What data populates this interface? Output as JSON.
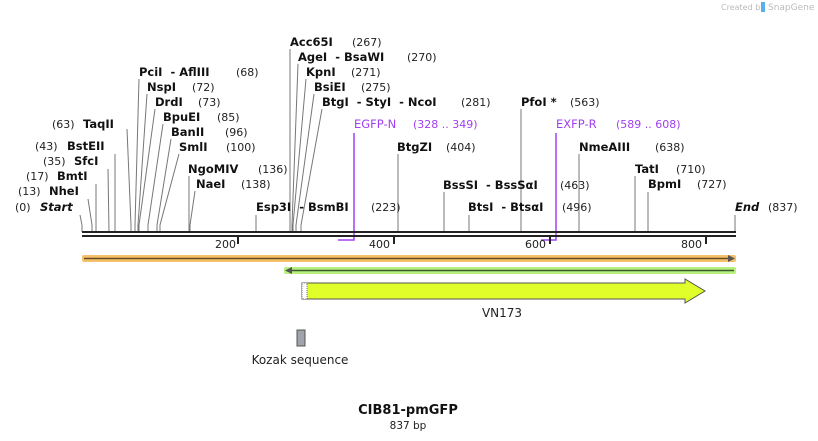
{
  "watermark": {
    "prefix": "Created by",
    "brand": "SnapGene"
  },
  "map": {
    "title": "CIB81-pmGFP",
    "length_label": "837 bp",
    "length_bp": 837
  },
  "enzymes": [
    {
      "name": "Start",
      "pos": "(0)"
    },
    {
      "name": "NheI",
      "pos": "(13)"
    },
    {
      "name": "BmtI",
      "pos": "(17)"
    },
    {
      "name": "SfcI",
      "pos": "(35)"
    },
    {
      "name": "BstEII",
      "pos": "(43)"
    },
    {
      "name": "TaqII",
      "pos": "(63)"
    },
    {
      "name": "PciI  - AflIII",
      "pos": "(68)"
    },
    {
      "name": "NspI",
      "pos": "(72)"
    },
    {
      "name": "DrdI",
      "pos": "(73)"
    },
    {
      "name": "BpuEI",
      "pos": "(85)"
    },
    {
      "name": "BanII",
      "pos": "(96)"
    },
    {
      "name": "SmlI",
      "pos": "(100)"
    },
    {
      "name": "NgoMIV",
      "pos": "(136)"
    },
    {
      "name": "NaeI",
      "pos": "(138)"
    },
    {
      "name": "Esp3I  - BsmBI",
      "pos": "(223)"
    },
    {
      "name": "Acc65I",
      "pos": "(267)"
    },
    {
      "name": "AgeI  - BsaWI",
      "pos": "(270)"
    },
    {
      "name": "KpnI",
      "pos": "(271)"
    },
    {
      "name": "BsiEI",
      "pos": "(275)"
    },
    {
      "name": "BtgI  - StyI  - NcoI",
      "pos": "(281)"
    },
    {
      "name": "BtgZI",
      "pos": "(404)"
    },
    {
      "name": "BssSI  - BssSαI",
      "pos": "(463)"
    },
    {
      "name": "BtsI  - BtsαI",
      "pos": "(496)"
    },
    {
      "name": "PfoI *",
      "pos": "(563)"
    },
    {
      "name": "NmeAIII",
      "pos": "(638)"
    },
    {
      "name": "TatI",
      "pos": "(710)"
    },
    {
      "name": "BpmI",
      "pos": "(727)"
    },
    {
      "name": "End",
      "pos": "(837)"
    }
  ],
  "primers": [
    {
      "name": "EGFP-N",
      "range": "(328 .. 349)"
    },
    {
      "name": "EXFP-R",
      "range": "(589 .. 608)"
    }
  ],
  "ruler": [
    "200",
    "400",
    "600",
    "800"
  ],
  "features": [
    {
      "name": "VN173",
      "color": "#e0ff2a"
    },
    {
      "name": "Kozak sequence",
      "color": "#a0a4ac"
    }
  ],
  "colors": {
    "primer": "#a040f0",
    "orange_bar": "#f5c06a",
    "green_bar": "#b8f080"
  }
}
